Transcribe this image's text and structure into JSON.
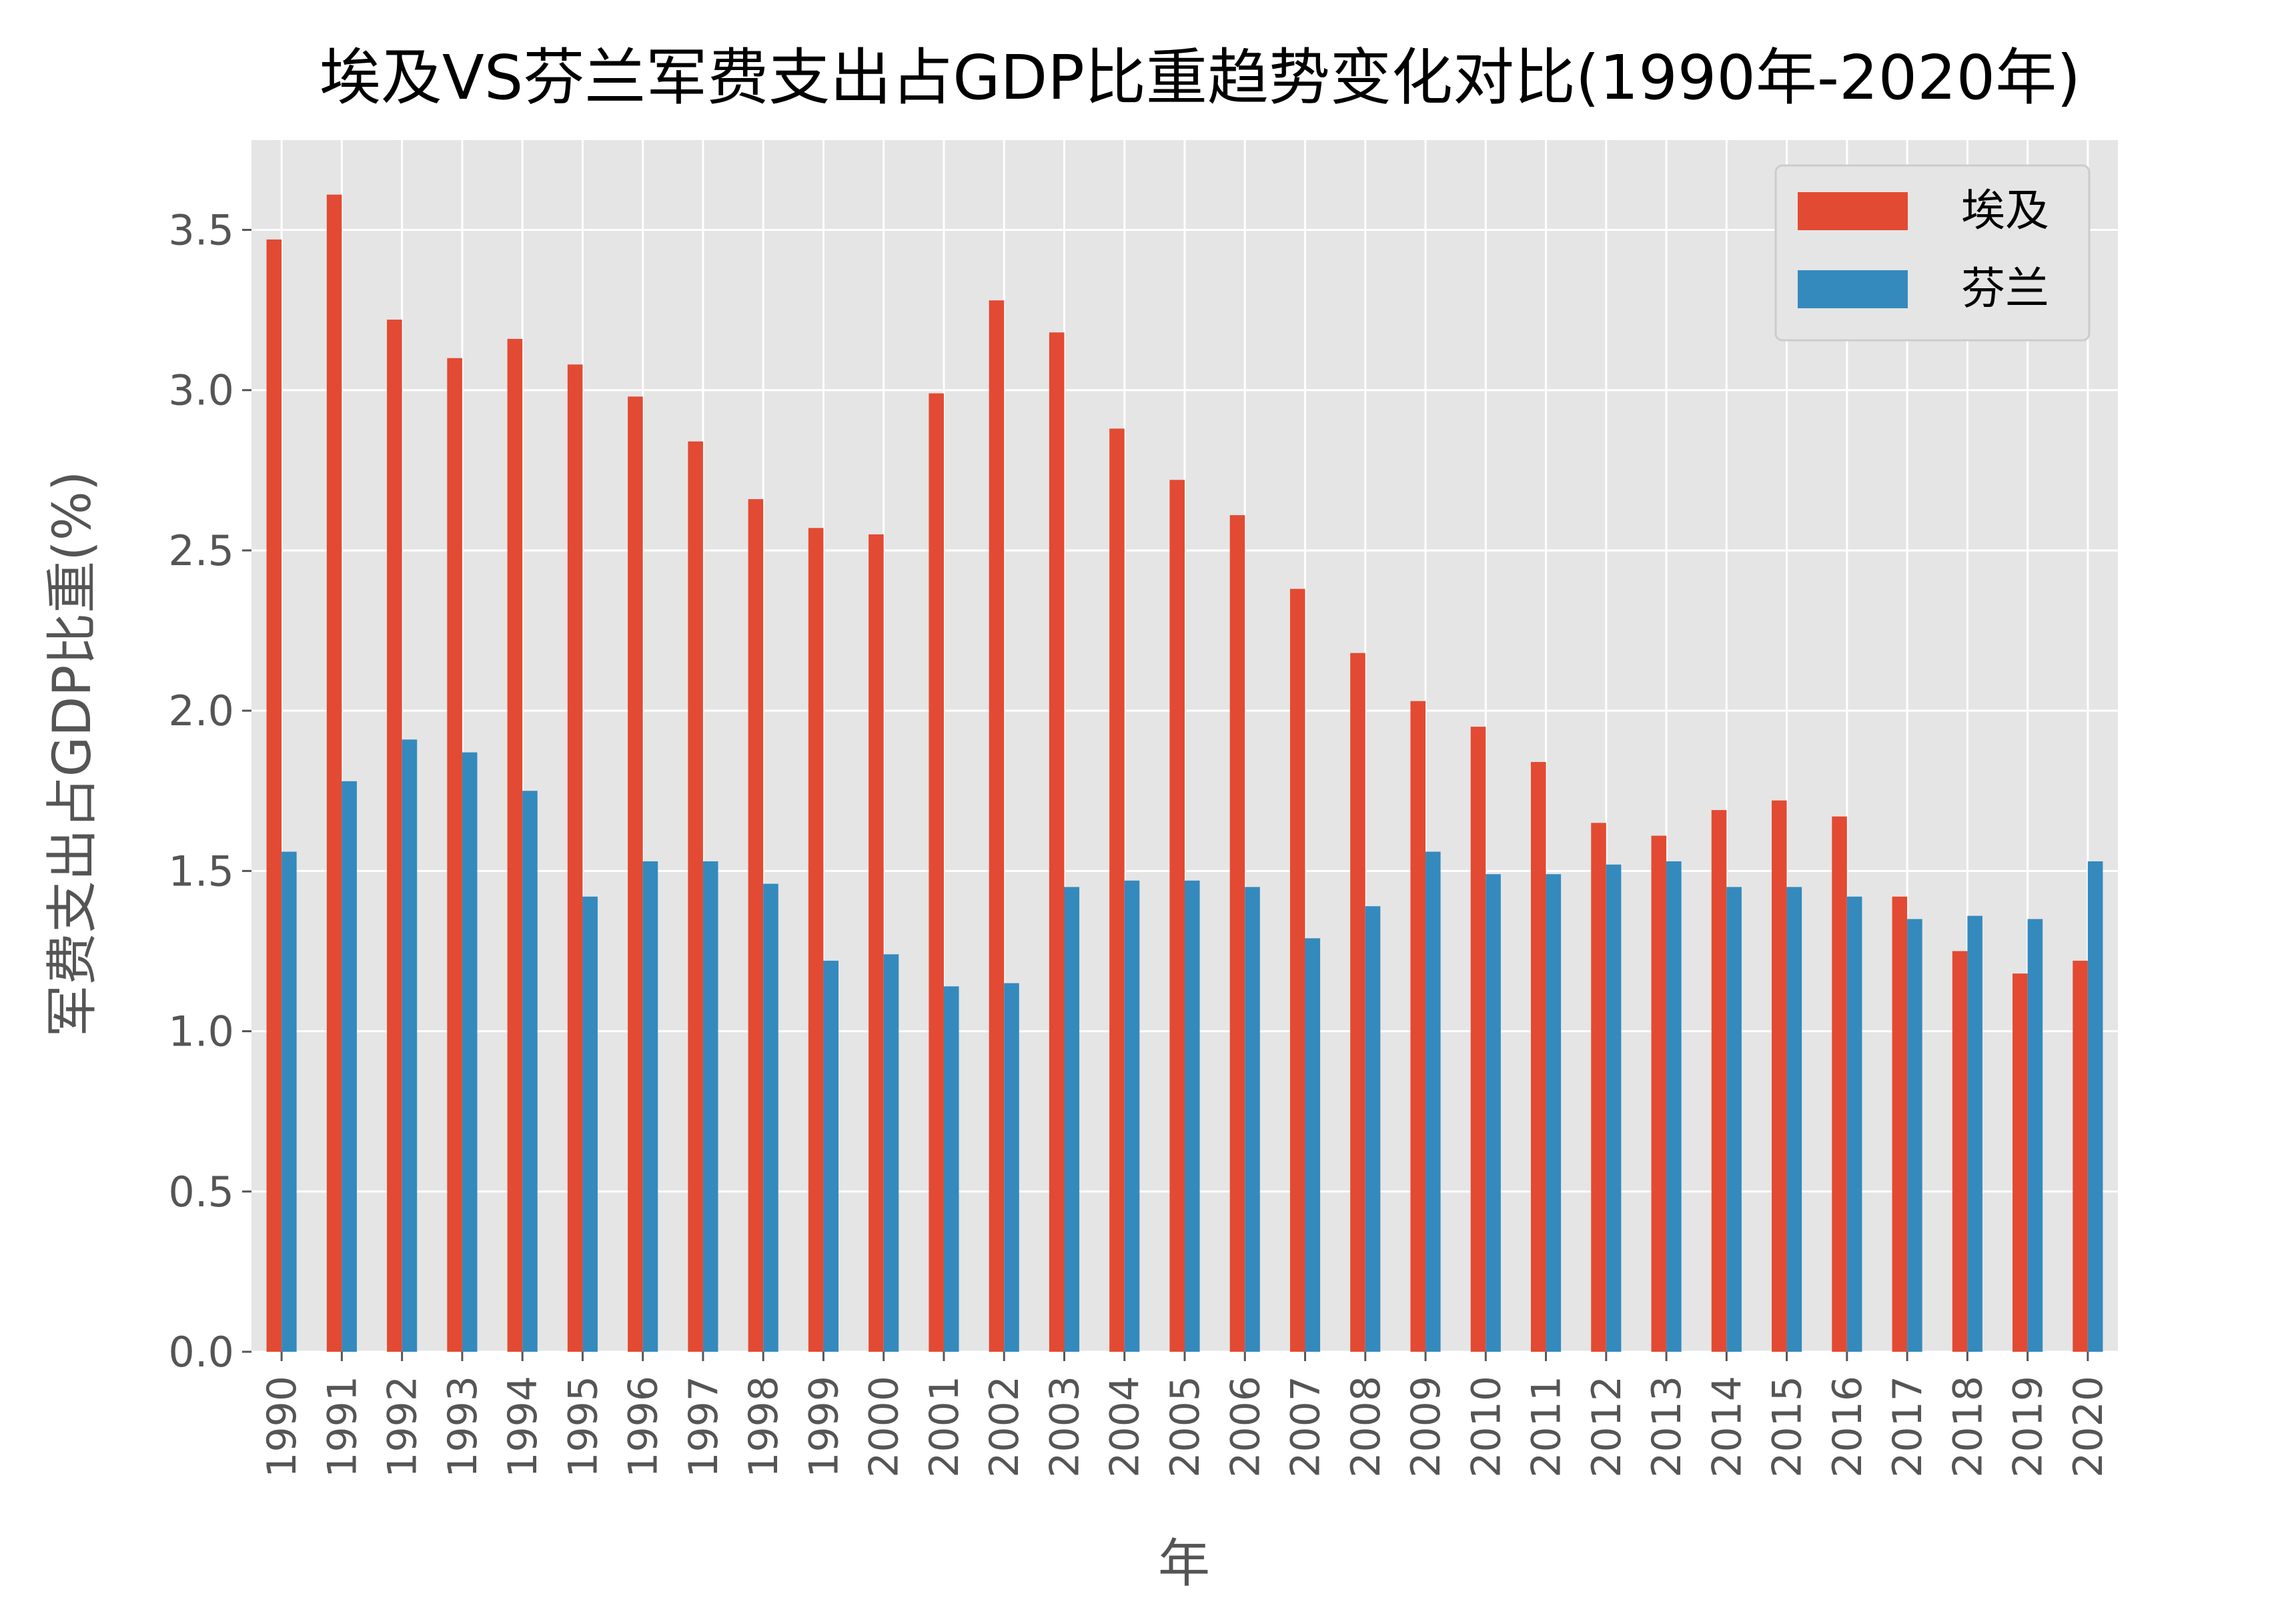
{
  "chart_data": {
    "type": "bar",
    "title": "埃及VS芬兰军费支出占GDP比重趋势变化对比(1990年-2020年)",
    "xlabel": "年",
    "ylabel": "军费支出占GDP比重(%)",
    "categories": [
      "1990",
      "1991",
      "1992",
      "1993",
      "1994",
      "1995",
      "1996",
      "1997",
      "1998",
      "1999",
      "2000",
      "2001",
      "2002",
      "2003",
      "2004",
      "2005",
      "2006",
      "2007",
      "2008",
      "2009",
      "2010",
      "2011",
      "2012",
      "2013",
      "2014",
      "2015",
      "2016",
      "2017",
      "2018",
      "2019",
      "2020"
    ],
    "series": [
      {
        "name": "埃及",
        "color": "#E24A33",
        "values": [
          3.47,
          3.61,
          3.22,
          3.1,
          3.16,
          3.08,
          2.98,
          2.84,
          2.66,
          2.57,
          2.55,
          2.99,
          3.28,
          3.18,
          2.88,
          2.72,
          2.61,
          2.38,
          2.18,
          2.03,
          1.95,
          1.84,
          1.65,
          1.61,
          1.69,
          1.72,
          1.67,
          1.42,
          1.25,
          1.18,
          1.22
        ]
      },
      {
        "name": "芬兰",
        "color": "#348ABD",
        "values": [
          1.56,
          1.78,
          1.91,
          1.87,
          1.75,
          1.42,
          1.53,
          1.53,
          1.46,
          1.22,
          1.24,
          1.14,
          1.15,
          1.45,
          1.47,
          1.47,
          1.45,
          1.29,
          1.39,
          1.56,
          1.49,
          1.49,
          1.52,
          1.53,
          1.45,
          1.45,
          1.42,
          1.35,
          1.36,
          1.35,
          1.53
        ]
      }
    ],
    "ylim": [
      0,
      3.78
    ],
    "yticks": [
      "0.0",
      "0.5",
      "1.0",
      "1.5",
      "2.0",
      "2.5",
      "3.0",
      "3.5"
    ],
    "grid": true,
    "legend_position": "top-right",
    "style": {
      "plot_background": "#E5E5E5",
      "grid_color": "#FFFFFF",
      "tick_label_color": "#555555",
      "axis_label_color": "#555555",
      "title_color": "#000000"
    }
  }
}
